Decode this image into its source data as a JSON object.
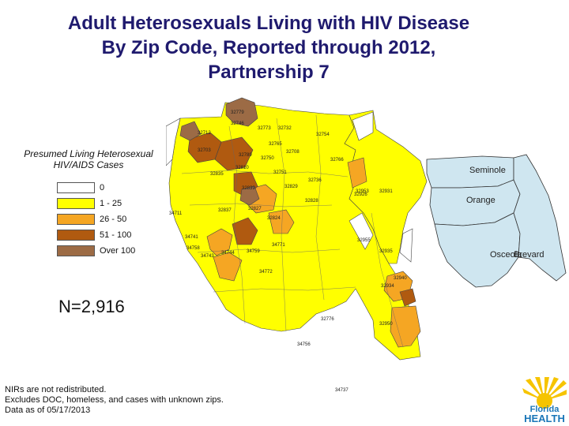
{
  "title_lines": [
    "Adult Heterosexuals Living with HIV Disease",
    "By Zip Code, Reported through 2012,",
    "Partnership 7"
  ],
  "legend": {
    "title_lines": [
      "Presumed Living Heterosexual",
      "HIV/AIDS Cases"
    ],
    "items": [
      {
        "label": "0",
        "color": "#ffffff"
      },
      {
        "label": "1 - 25",
        "color": "#ffff00"
      },
      {
        "label": "26 - 50",
        "color": "#f5a623"
      },
      {
        "label": "51 - 100",
        "color": "#b05a10"
      },
      {
        "label": "Over 100",
        "color": "#9c6b45"
      }
    ]
  },
  "n_count": "N=2,916",
  "notes": [
    "NIRs are not redistributed.",
    "Excludes DOC, homeless, and cases with unknown zips.",
    "Data as of 05/17/2013"
  ],
  "county_labels": {
    "seminole": "Seminole",
    "orange": "Orange",
    "osceola": "Osceola",
    "brevard": "Brevard"
  },
  "zip_labels": [
    "32779",
    "32746",
    "32773",
    "32712",
    "32732",
    "32754",
    "32703",
    "32708",
    "32765",
    "32750",
    "32766",
    "32789",
    "32751",
    "32810",
    "32835",
    "32839",
    "32829",
    "32828",
    "32827",
    "32837",
    "32824",
    "32926",
    "32953",
    "32931",
    "32955",
    "32935",
    "32940",
    "32934",
    "32950",
    "34711",
    "34741",
    "34744",
    "34758",
    "34759",
    "34743",
    "34772",
    "34771",
    "32776",
    "34756",
    "34737",
    "32736"
  ],
  "logo": {
    "line1": "Florida",
    "line2": "HEALTH"
  },
  "colors": {
    "title": "#1f1a6e",
    "county_fill": "#cfe6f0",
    "zero": "#ffffff",
    "low": "#ffff00",
    "mid": "#f5a623",
    "high": "#b05a10",
    "top": "#9c6b45"
  }
}
